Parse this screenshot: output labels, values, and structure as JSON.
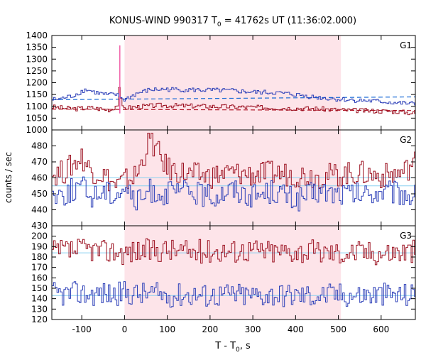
{
  "title_prefix": "KONUS-WIND 990317 T",
  "title_sub": "0",
  "title_suffix": " = 41762s UT (11:36:02.000)",
  "ylabel": "counts / sec",
  "xlabel_prefix": "T - T",
  "xlabel_sub": "0",
  "xlabel_suffix": ", s",
  "chart_data": {
    "type": "line",
    "xlim": [
      -170,
      680
    ],
    "xticks": [
      -100,
      0,
      100,
      200,
      300,
      400,
      500,
      600
    ],
    "shaded_interval": [
      0,
      506
    ],
    "colors": {
      "shade": "#fde4e9",
      "dark": "#9b0f1f",
      "blue": "#2c3fb8",
      "fit_dark": "#b21b2b",
      "fit_blue": "#1a6bd6",
      "ref_line": "#8ad0f0",
      "spike": "#f060a8"
    },
    "panels": [
      {
        "label": "G1",
        "ylim": [
          1000,
          1400
        ],
        "yticks": [
          1000,
          1050,
          1100,
          1150,
          1200,
          1250,
          1300,
          1350,
          1400
        ],
        "series": [
          {
            "color": "dark",
            "segments": [
              [
                -170,
                1098
              ],
              [
                -140,
                1092
              ],
              [
                -110,
                1090
              ],
              [
                -80,
                1094
              ],
              [
                -50,
                1088
              ],
              [
                -30,
                1085
              ],
              [
                -15,
                1110
              ],
              [
                -10,
                1212
              ],
              [
                -7,
                1095
              ],
              [
                0,
                1093
              ],
              [
                30,
                1098
              ],
              [
                80,
                1104
              ],
              [
                150,
                1102
              ],
              [
                200,
                1100
              ],
              [
                250,
                1098
              ],
              [
                300,
                1096
              ],
              [
                350,
                1094
              ],
              [
                400,
                1092
              ],
              [
                450,
                1090
              ],
              [
                500,
                1085
              ],
              [
                550,
                1082
              ],
              [
                600,
                1080
              ],
              [
                640,
                1078
              ],
              [
                680,
                1070
              ]
            ]
          },
          {
            "color": "blue",
            "segments": [
              [
                -170,
                1128
              ],
              [
                -150,
                1132
              ],
              [
                -120,
                1145
              ],
              [
                -90,
                1172
              ],
              [
                -70,
                1160
              ],
              [
                -40,
                1148
              ],
              [
                -20,
                1150
              ],
              [
                0,
                1128
              ],
              [
                30,
                1155
              ],
              [
                60,
                1170
              ],
              [
                100,
                1172
              ],
              [
                150,
                1170
              ],
              [
                200,
                1168
              ],
              [
                250,
                1166
              ],
              [
                300,
                1160
              ],
              [
                350,
                1158
              ],
              [
                400,
                1150
              ],
              [
                450,
                1138
              ],
              [
                500,
                1130
              ],
              [
                550,
                1125
              ],
              [
                600,
                1120
              ],
              [
                640,
                1114
              ],
              [
                680,
                1110
              ]
            ]
          }
        ],
        "fits": [
          {
            "color": "fit_dark",
            "x": [
              -170,
              680
            ],
            "y": [
              1088,
              1082
            ]
          },
          {
            "color": "fit_blue",
            "x": [
              -170,
              680
            ],
            "y": [
              1128,
              1140
            ]
          }
        ],
        "spike": {
          "x": -11,
          "y": 1358
        }
      },
      {
        "label": "G2",
        "ylim": [
          430,
          490
        ],
        "yticks": [
          430,
          440,
          450,
          460,
          470,
          480
        ],
        "series": [
          {
            "color": "dark",
            "segments": [
              [
                -170,
                462
              ],
              [
                -140,
                464
              ],
              [
                -100,
                473
              ],
              [
                -80,
                465
              ],
              [
                -50,
                462
              ],
              [
                -20,
                455
              ],
              [
                0,
                458
              ],
              [
                30,
                462
              ],
              [
                60,
                484
              ],
              [
                100,
                466
              ],
              [
                150,
                462
              ],
              [
                200,
                461
              ],
              [
                250,
                463
              ],
              [
                300,
                462
              ],
              [
                350,
                463
              ],
              [
                400,
                462
              ],
              [
                450,
                461
              ],
              [
                500,
                462
              ],
              [
                550,
                463
              ],
              [
                600,
                461
              ],
              [
                650,
                463
              ],
              [
                680,
                470
              ]
            ]
          },
          {
            "color": "blue",
            "segments": [
              [
                -170,
                450
              ],
              [
                -140,
                450
              ],
              [
                -100,
                455
              ],
              [
                -80,
                448
              ],
              [
                -50,
                452
              ],
              [
                -20,
                450
              ],
              [
                0,
                455
              ],
              [
                30,
                444
              ],
              [
                60,
                452
              ],
              [
                100,
                450
              ],
              [
                150,
                452
              ],
              [
                200,
                448
              ],
              [
                250,
                453
              ],
              [
                300,
                449
              ],
              [
                350,
                452
              ],
              [
                400,
                446
              ],
              [
                450,
                451
              ],
              [
                500,
                450
              ],
              [
                550,
                449
              ],
              [
                600,
                451
              ],
              [
                650,
                450
              ],
              [
                680,
                448
              ]
            ]
          }
        ],
        "fits": [
          {
            "color": "ref_line",
            "x": [
              -170,
              680
            ],
            "y": [
              460,
              460
            ]
          },
          {
            "color": "ref_line",
            "x": [
              -170,
              680
            ],
            "y": [
              455,
              455
            ]
          }
        ]
      },
      {
        "label": "G3",
        "ylim": [
          120,
          210
        ],
        "yticks": [
          120,
          130,
          140,
          150,
          160,
          170,
          180,
          190,
          200
        ],
        "series": [
          {
            "color": "dark",
            "segments": [
              [
                -170,
                184
              ],
              [
                -140,
                186
              ],
              [
                -110,
                186
              ],
              [
                -80,
                188
              ],
              [
                -50,
                185
              ],
              [
                -20,
                186
              ],
              [
                0,
                184
              ],
              [
                30,
                186
              ],
              [
                60,
                186
              ],
              [
                100,
                187
              ],
              [
                150,
                185
              ],
              [
                200,
                186
              ],
              [
                250,
                186
              ],
              [
                300,
                187
              ],
              [
                350,
                185
              ],
              [
                400,
                186
              ],
              [
                450,
                185
              ],
              [
                500,
                184
              ],
              [
                550,
                185
              ],
              [
                600,
                184
              ],
              [
                650,
                185
              ],
              [
                680,
                186
              ]
            ]
          },
          {
            "color": "blue",
            "segments": [
              [
                -170,
                145
              ],
              [
                -140,
                144
              ],
              [
                -110,
                145
              ],
              [
                -80,
                144
              ],
              [
                -50,
                145
              ],
              [
                -20,
                144
              ],
              [
                0,
                146
              ],
              [
                30,
                144
              ],
              [
                60,
                145
              ],
              [
                100,
                143
              ],
              [
                150,
                144
              ],
              [
                200,
                143
              ],
              [
                250,
                144
              ],
              [
                300,
                143
              ],
              [
                350,
                144
              ],
              [
                400,
                143
              ],
              [
                450,
                143
              ],
              [
                500,
                144
              ],
              [
                550,
                143
              ],
              [
                600,
                144
              ],
              [
                650,
                143
              ],
              [
                680,
                144
              ]
            ]
          }
        ],
        "fits": [
          {
            "color": "ref_line",
            "x": [
              -170,
              680
            ],
            "y": [
              184,
              184
            ]
          },
          {
            "color": "ref_line",
            "x": [
              -170,
              680
            ],
            "y": [
              143,
              143
            ]
          }
        ]
      }
    ]
  }
}
